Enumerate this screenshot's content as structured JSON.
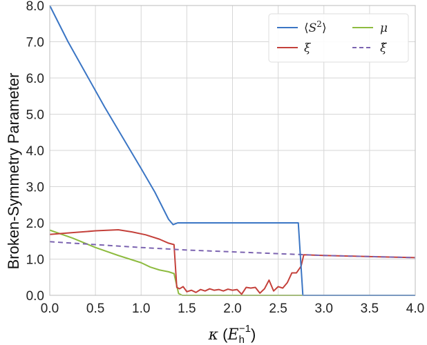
{
  "chart_data": {
    "type": "line",
    "xlabel": "κ (E_h⁻¹)",
    "xlabel_parts": {
      "symbol": "κ",
      "open": " (",
      "base": "E",
      "sub": "h",
      "sup": "−1",
      "close": ")"
    },
    "ylabel": "Broken-Symmetry Parameter",
    "xlim": [
      0.0,
      4.0
    ],
    "ylim": [
      0.0,
      8.0
    ],
    "x_ticks": [
      "0.0",
      "0.5",
      "1.0",
      "1.5",
      "2.0",
      "2.5",
      "3.0",
      "3.5",
      "4.0"
    ],
    "y_ticks": [
      "0.0",
      "1.0",
      "2.0",
      "3.0",
      "4.0",
      "5.0",
      "6.0",
      "7.0",
      "8.0"
    ],
    "grid": true,
    "legend": {
      "placement": "top-right",
      "columns": 2
    },
    "series": [
      {
        "name": "⟨S²⟩",
        "label_parts": {
          "open": "⟨",
          "base": "S",
          "sup": "2",
          "close": "⟩"
        },
        "color": "#3a75c4",
        "style": "solid",
        "points": [
          [
            0.0,
            8.0
          ],
          [
            0.2,
            7.0
          ],
          [
            0.4,
            6.1
          ],
          [
            0.6,
            5.2
          ],
          [
            0.8,
            4.35
          ],
          [
            1.0,
            3.5
          ],
          [
            1.15,
            2.85
          ],
          [
            1.3,
            2.1
          ],
          [
            1.35,
            1.95
          ],
          [
            1.4,
            2.0
          ],
          [
            2.0,
            2.0
          ],
          [
            2.5,
            2.0
          ],
          [
            2.72,
            2.0
          ],
          [
            2.77,
            0.0
          ],
          [
            4.0,
            0.0
          ]
        ]
      },
      {
        "name": "ξ",
        "color": "#c4403a",
        "style": "solid",
        "points": [
          [
            0.0,
            1.68
          ],
          [
            0.25,
            1.73
          ],
          [
            0.5,
            1.78
          ],
          [
            0.75,
            1.81
          ],
          [
            0.9,
            1.75
          ],
          [
            1.05,
            1.67
          ],
          [
            1.2,
            1.55
          ],
          [
            1.3,
            1.44
          ],
          [
            1.36,
            1.4
          ],
          [
            1.39,
            0.22
          ],
          [
            1.42,
            0.18
          ],
          [
            1.46,
            0.24
          ],
          [
            1.5,
            0.1
          ],
          [
            1.55,
            0.14
          ],
          [
            1.6,
            0.08
          ],
          [
            1.65,
            0.16
          ],
          [
            1.7,
            0.12
          ],
          [
            1.75,
            0.18
          ],
          [
            1.8,
            0.14
          ],
          [
            1.85,
            0.16
          ],
          [
            1.9,
            0.12
          ],
          [
            1.95,
            0.17
          ],
          [
            2.0,
            0.14
          ],
          [
            2.05,
            0.16
          ],
          [
            2.1,
            0.03
          ],
          [
            2.15,
            0.22
          ],
          [
            2.2,
            0.2
          ],
          [
            2.25,
            0.22
          ],
          [
            2.3,
            0.06
          ],
          [
            2.35,
            0.18
          ],
          [
            2.4,
            0.42
          ],
          [
            2.45,
            0.12
          ],
          [
            2.5,
            0.24
          ],
          [
            2.55,
            0.2
          ],
          [
            2.6,
            0.35
          ],
          [
            2.65,
            0.62
          ],
          [
            2.7,
            0.62
          ],
          [
            2.75,
            0.8
          ],
          [
            2.78,
            1.12
          ],
          [
            3.0,
            1.1
          ],
          [
            3.5,
            1.07
          ],
          [
            4.0,
            1.04
          ]
        ]
      },
      {
        "name": "μ",
        "color": "#8dbb3f",
        "style": "solid",
        "points": [
          [
            0.0,
            1.8
          ],
          [
            0.25,
            1.58
          ],
          [
            0.5,
            1.32
          ],
          [
            0.75,
            1.1
          ],
          [
            1.0,
            0.9
          ],
          [
            1.1,
            0.78
          ],
          [
            1.2,
            0.7
          ],
          [
            1.3,
            0.65
          ],
          [
            1.36,
            0.6
          ],
          [
            1.41,
            0.05
          ],
          [
            1.45,
            0.0
          ],
          [
            4.0,
            0.0
          ]
        ]
      },
      {
        "name": "ξ̃",
        "color": "#7b63b0",
        "style": "dashed",
        "points": [
          [
            0.0,
            1.48
          ],
          [
            0.5,
            1.4
          ],
          [
            1.0,
            1.32
          ],
          [
            1.5,
            1.25
          ],
          [
            2.0,
            1.2
          ],
          [
            2.5,
            1.15
          ],
          [
            3.0,
            1.1
          ],
          [
            3.5,
            1.07
          ],
          [
            4.0,
            1.04
          ]
        ]
      }
    ]
  }
}
